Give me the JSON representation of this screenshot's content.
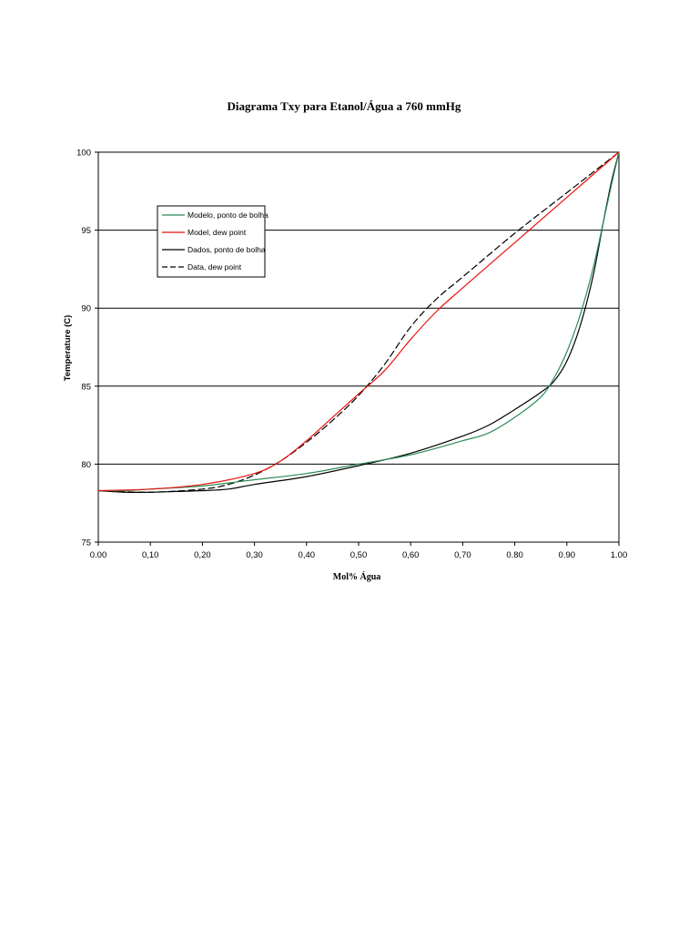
{
  "chart_data": {
    "type": "line",
    "title": "Diagrama Txy para Etanol/Água a 760 mmHg",
    "xlabel": "Mol% Água",
    "ylabel": "Temperature (C)",
    "xlim": [
      0,
      1
    ],
    "ylim": [
      75,
      100
    ],
    "x_tick_labels": [
      "0.00",
      "0,10",
      "0,20",
      "0,30",
      "0,40",
      "0,50",
      "0,60",
      "0,70",
      "0.80",
      "0.90",
      "1.00"
    ],
    "y_tick_labels": [
      "75",
      "80",
      "85",
      "90",
      "95",
      "100"
    ],
    "grid": "horizontal",
    "legend_position": "upper-left",
    "series": [
      {
        "name": "Modelo, ponto de bolha",
        "color": "#2e8b57",
        "dash": "solid",
        "x": [
          0.0,
          0.05,
          0.1,
          0.2,
          0.3,
          0.4,
          0.5,
          0.6,
          0.7,
          0.75,
          0.8,
          0.85,
          0.875,
          0.9,
          0.925,
          0.95,
          0.97,
          0.985,
          1.0
        ],
        "y": [
          78.3,
          78.3,
          78.4,
          78.6,
          79.0,
          79.4,
          80.0,
          80.6,
          81.5,
          82.0,
          83.0,
          84.3,
          85.5,
          87.2,
          89.5,
          92.5,
          95.5,
          97.8,
          100.0
        ]
      },
      {
        "name": "Model, dew point",
        "color": "#e8130d",
        "dash": "solid",
        "x": [
          0.0,
          0.1,
          0.2,
          0.3,
          0.35,
          0.4,
          0.45,
          0.5,
          0.55,
          0.6,
          0.65,
          0.7,
          0.8,
          0.9,
          1.0
        ],
        "y": [
          78.3,
          78.4,
          78.7,
          79.4,
          80.2,
          81.5,
          83.0,
          84.5,
          86.0,
          88.0,
          89.8,
          91.3,
          94.2,
          97.1,
          100.0
        ]
      },
      {
        "name": "Dados, ponto de bolha",
        "color": "#000000",
        "dash": "solid",
        "x": [
          0.0,
          0.05,
          0.1,
          0.15,
          0.2,
          0.25,
          0.3,
          0.4,
          0.5,
          0.6,
          0.7,
          0.75,
          0.8,
          0.85,
          0.875,
          0.9,
          0.925,
          0.95,
          0.97,
          0.985,
          1.0
        ],
        "y": [
          78.3,
          78.2,
          78.2,
          78.25,
          78.3,
          78.4,
          78.7,
          79.2,
          79.9,
          80.7,
          81.8,
          82.5,
          83.5,
          84.6,
          85.3,
          86.6,
          88.8,
          92.0,
          95.5,
          98.0,
          100.0
        ]
      },
      {
        "name": "Data, dew point",
        "color": "#000000",
        "dash": "dashed",
        "x": [
          0.0,
          0.1,
          0.2,
          0.25,
          0.3,
          0.35,
          0.4,
          0.45,
          0.5,
          0.55,
          0.6,
          0.65,
          0.7,
          0.8,
          0.9,
          1.0
        ],
        "y": [
          78.3,
          78.2,
          78.4,
          78.7,
          79.3,
          80.2,
          81.4,
          82.8,
          84.4,
          86.4,
          88.8,
          90.6,
          92.0,
          94.8,
          97.4,
          100.0
        ]
      }
    ]
  }
}
